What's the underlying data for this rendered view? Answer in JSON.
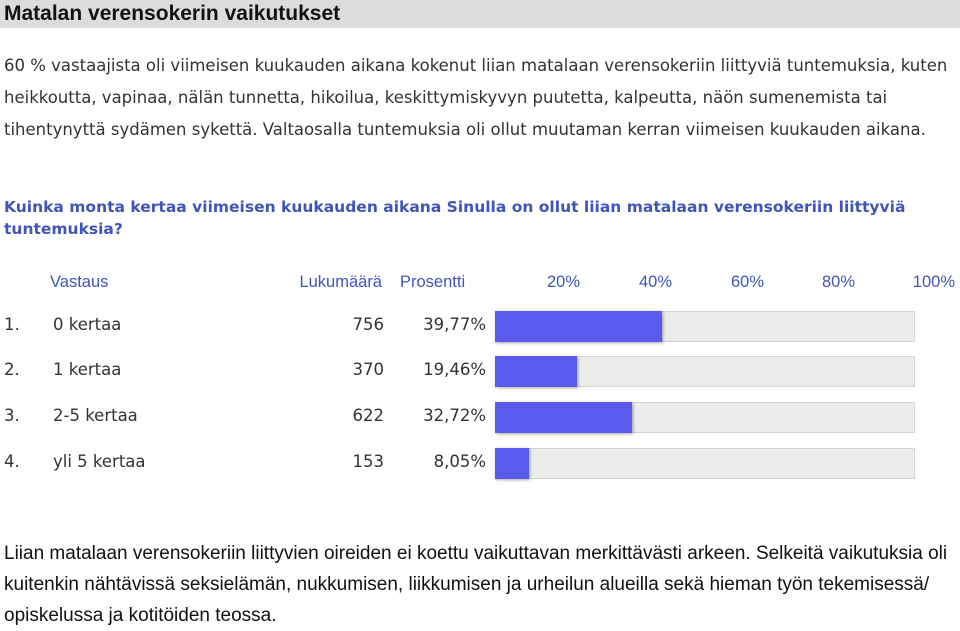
{
  "title": "Matalan verensokerin vaikutukset",
  "intro": "60 % vastaajista oli viimeisen kuukauden aikana kokenut liian matalaan verensokeriin liittyviä tuntemuksia, kuten heikkoutta, vapinaa, nälän tunnetta, hikoilua, keskittymiskyvyn puutetta, kalpeutta, näön sumenemista tai tihentynyttä sydämen sykettä. Valtaosalla tuntemuksia oli ollut muutaman kerran viimeisen kuukauden aikana.",
  "question": "Kuinka monta kertaa viimeisen kuukauden aikana Sinulla on ollut liian matalaan verensokeriin liittyviä tuntemuksia?",
  "table": {
    "headers": {
      "answer": "Vastaus",
      "count": "Lukumäärä",
      "percent": "Prosentti",
      "scale": [
        "20%",
        "40%",
        "60%",
        "80%",
        "100%"
      ]
    },
    "rows": [
      {
        "num": "1.",
        "label": "0 kertaa",
        "count": "756",
        "percent": "39,77%"
      },
      {
        "num": "2.",
        "label": "1 kertaa",
        "count": "370",
        "percent": "19,46%"
      },
      {
        "num": "3.",
        "label": "2-5 kertaa",
        "count": "622",
        "percent": "32,72%"
      },
      {
        "num": "4.",
        "label": "yli 5 kertaa",
        "count": "153",
        "percent": "8,05%"
      }
    ]
  },
  "chart_data": {
    "type": "bar",
    "categories": [
      "0 kertaa",
      "1 kertaa",
      "2-5 kertaa",
      "yli 5 kertaa"
    ],
    "values": [
      39.77,
      19.46,
      32.72,
      8.05
    ],
    "counts": [
      756,
      370,
      622,
      153
    ],
    "xlim": [
      0,
      100
    ],
    "tick_labels": [
      "20%",
      "40%",
      "60%",
      "80%",
      "100%"
    ]
  },
  "outro": "Liian matalaan verensokeriin liittyvien oireiden ei koettu vaikuttavan merkittävästi arkeen. Selkeitä vaikutuksia oli kuitenkin nähtävissä seksielämän, nukkumisen, liikkumisen ja urheilun alueilla sekä hieman työn tekemisessä/ opiskelussa ja kotitöiden teossa.",
  "colors": {
    "bar": "#5a5aec",
    "track": "#ececec",
    "header_text": "#3f55b8"
  }
}
